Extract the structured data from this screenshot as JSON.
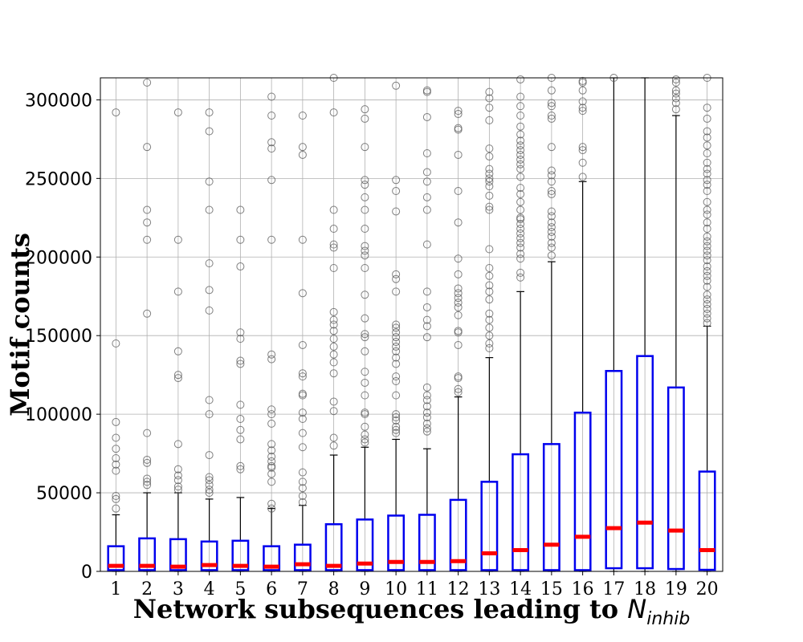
{
  "chart_data": {
    "type": "box",
    "xlabel": "Network subsequences leading to ",
    "xlabel_symbol": "N",
    "xlabel_subscript": "inhib",
    "ylabel": "Motif counts",
    "ylim": [
      0,
      314000
    ],
    "yticks": [
      0,
      50000,
      100000,
      150000,
      200000,
      250000,
      300000
    ],
    "grid": true,
    "categories": [
      "1",
      "2",
      "3",
      "4",
      "5",
      "6",
      "7",
      "8",
      "9",
      "10",
      "11",
      "12",
      "13",
      "14",
      "15",
      "16",
      "17",
      "18",
      "19",
      "20"
    ],
    "colors": {
      "box": "#0000ee",
      "median": "#ff0000",
      "whisker": "#000000",
      "outlier": "#555555",
      "grid": "#b0b0b0"
    },
    "boxes": [
      {
        "q1": 800,
        "median": 3500,
        "q3": 16000,
        "whislo": 0,
        "whishi": 36000,
        "fliers": [
          40000,
          46000,
          48000,
          64000,
          68000,
          72000,
          78000,
          85000,
          95000,
          145000,
          292000
        ]
      },
      {
        "q1": 800,
        "median": 3500,
        "q3": 21000,
        "whislo": 0,
        "whishi": 50000,
        "fliers": [
          55000,
          57000,
          59000,
          69000,
          71000,
          88000,
          164000,
          211000,
          222000,
          230000,
          270000,
          311000
        ]
      },
      {
        "q1": 800,
        "median": 3000,
        "q3": 20500,
        "whislo": 0,
        "whishi": 50000,
        "fliers": [
          52000,
          54000,
          58000,
          61000,
          65000,
          81000,
          123000,
          125000,
          140000,
          178000,
          211000,
          292000
        ]
      },
      {
        "q1": 800,
        "median": 4000,
        "q3": 19000,
        "whislo": 0,
        "whishi": 46000,
        "fliers": [
          50000,
          52000,
          55000,
          58000,
          60000,
          74000,
          100000,
          109000,
          166000,
          179000,
          196000,
          230000,
          248000,
          280000,
          292000
        ]
      },
      {
        "q1": 800,
        "median": 3500,
        "q3": 19500,
        "whislo": 0,
        "whishi": 47000,
        "fliers": [
          65000,
          67000,
          84000,
          90000,
          97000,
          106000,
          132000,
          134000,
          148000,
          152000,
          194000,
          211000,
          230000
        ]
      },
      {
        "q1": 800,
        "median": 3000,
        "q3": 16000,
        "whislo": 0,
        "whishi": 40000,
        "fliers": [
          40000,
          43000,
          57000,
          62000,
          66000,
          67000,
          70000,
          73000,
          77000,
          81000,
          94000,
          100000,
          103000,
          135000,
          138000,
          211000,
          249000,
          269000,
          273000,
          290000,
          302000
        ]
      },
      {
        "q1": 800,
        "median": 4500,
        "q3": 17000,
        "whislo": 0,
        "whishi": 42000,
        "fliers": [
          44000,
          48000,
          53000,
          57000,
          63000,
          79000,
          88000,
          97000,
          101000,
          112000,
          113000,
          124000,
          126000,
          144000,
          177000,
          211000,
          265000,
          270000,
          290000
        ]
      },
      {
        "q1": 800,
        "median": 3500,
        "q3": 30000,
        "whislo": 0,
        "whishi": 74000,
        "fliers": [
          80000,
          85000,
          102000,
          108000,
          126000,
          133000,
          138000,
          143000,
          148000,
          153000,
          157000,
          160000,
          165000,
          193000,
          206000,
          208000,
          218000,
          230000,
          292000,
          315000
        ]
      },
      {
        "q1": 800,
        "median": 5000,
        "q3": 33000,
        "whislo": 0,
        "whishi": 79000,
        "fliers": [
          82000,
          84000,
          87000,
          92000,
          100000,
          101000,
          112000,
          120000,
          127000,
          140000,
          149000,
          151000,
          161000,
          176000,
          193000,
          201000,
          204000,
          207000,
          218000,
          230000,
          238000,
          246000,
          249000,
          270000,
          288000,
          294000
        ]
      },
      {
        "q1": 800,
        "median": 6000,
        "q3": 35500,
        "whislo": 0,
        "whishi": 84000,
        "fliers": [
          88000,
          90000,
          92000,
          96000,
          98000,
          100000,
          112000,
          121000,
          124000,
          132000,
          136000,
          140000,
          143000,
          146000,
          149000,
          152000,
          155000,
          157000,
          178000,
          186000,
          189000,
          229000,
          242000,
          249000,
          309000
        ]
      },
      {
        "q1": 800,
        "median": 6000,
        "q3": 36000,
        "whislo": 0,
        "whishi": 78000,
        "fliers": [
          89000,
          91000,
          94000,
          98000,
          101000,
          105000,
          109000,
          112000,
          117000,
          149000,
          156000,
          160000,
          168000,
          178000,
          208000,
          230000,
          238000,
          248000,
          254000,
          266000,
          289000,
          305000,
          306000
        ]
      },
      {
        "q1": 800,
        "median": 6500,
        "q3": 45500,
        "whislo": 0,
        "whishi": 111000,
        "fliers": [
          114000,
          116000,
          123000,
          124000,
          144000,
          152000,
          153000,
          163000,
          168000,
          171000,
          174000,
          177000,
          180000,
          189000,
          199000,
          222000,
          242000,
          265000,
          281000,
          282000,
          291000,
          293000
        ]
      },
      {
        "q1": 800,
        "median": 11500,
        "q3": 57000,
        "whislo": 0,
        "whishi": 136000,
        "fliers": [
          142000,
          145000,
          150000,
          155000,
          160000,
          164000,
          173000,
          178000,
          182000,
          188000,
          193000,
          205000,
          230000,
          232000,
          239000,
          245000,
          248000,
          250000,
          253000,
          256000,
          264000,
          269000,
          287000,
          295000,
          301000,
          305000
        ]
      },
      {
        "q1": 800,
        "median": 13500,
        "q3": 74500,
        "whislo": 0,
        "whishi": 178000,
        "fliers": [
          187000,
          190000,
          199000,
          202000,
          206000,
          209000,
          212000,
          215000,
          218000,
          221000,
          224000,
          225000,
          230000,
          235000,
          240000,
          244000,
          251000,
          256000,
          259000,
          262000,
          265000,
          268000,
          271000,
          274000,
          278000,
          283000,
          290000,
          296000,
          302000,
          313000
        ]
      },
      {
        "q1": 800,
        "median": 17000,
        "q3": 81000,
        "whislo": 0,
        "whishi": 197000,
        "fliers": [
          201000,
          206000,
          209000,
          213000,
          216000,
          219000,
          222000,
          226000,
          229000,
          240000,
          242000,
          248000,
          252000,
          255000,
          270000,
          288000,
          290000,
          296000,
          298000,
          306000,
          314000
        ]
      },
      {
        "q1": 800,
        "median": 22000,
        "q3": 101000,
        "whislo": 0,
        "whishi": 248000,
        "fliers": [
          251000,
          260000,
          268000,
          270000,
          293000,
          295000,
          299000,
          306000,
          311000,
          312000
        ]
      },
      {
        "q1": 2000,
        "median": 27500,
        "q3": 127500,
        "whislo": 0,
        "whishi": 314000,
        "fliers": [
          315000
        ]
      },
      {
        "q1": 2000,
        "median": 31000,
        "q3": 137000,
        "whislo": 0,
        "whishi": 314000,
        "fliers": []
      },
      {
        "q1": 1500,
        "median": 26000,
        "q3": 117000,
        "whislo": 0,
        "whishi": 290000,
        "fliers": [
          294000,
          298000,
          301000,
          304000,
          306000,
          311000,
          313000
        ]
      },
      {
        "q1": 1000,
        "median": 13500,
        "q3": 63500,
        "whislo": 0,
        "whishi": 156000,
        "fliers": [
          158000,
          161000,
          164000,
          167000,
          170000,
          173000,
          176000,
          181000,
          185000,
          188000,
          191000,
          194000,
          198000,
          201000,
          204000,
          207000,
          210000,
          213000,
          218000,
          222000,
          227000,
          230000,
          235000,
          242000,
          246000,
          249000,
          253000,
          256000,
          260000,
          266000,
          271000,
          276000,
          280000,
          288000,
          295000,
          314000
        ]
      }
    ]
  }
}
